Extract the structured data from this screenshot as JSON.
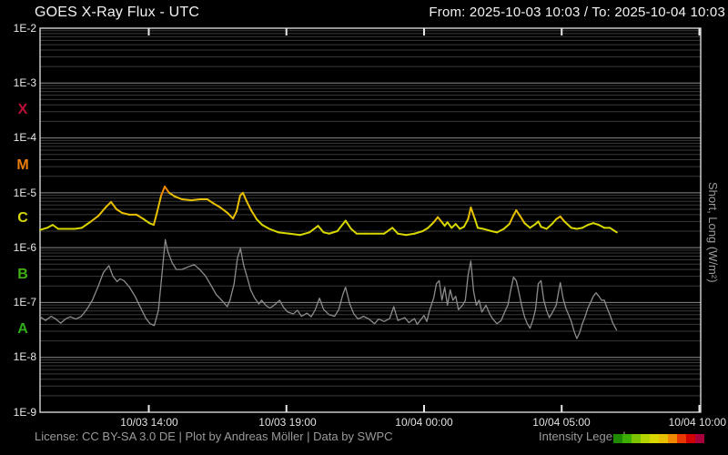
{
  "header": {
    "title": "GOES X-Ray Flux - UTC",
    "range": "From: 2025-10-03 10:03  /  To: 2025-10-04 10:03"
  },
  "footer": {
    "license": "License: CC BY-SA 3.0 DE | Plot by Andreas Möller | Data by SWPC",
    "legend_label": "Intensity Legend",
    "legend_colors": [
      "#1f8a00",
      "#3cae00",
      "#7cc400",
      "#b4d400",
      "#d8d800",
      "#e8c000",
      "#f08800",
      "#e83800",
      "#d00000",
      "#a8003c"
    ]
  },
  "chart_data": {
    "type": "line",
    "title": "GOES X-Ray Flux - UTC",
    "time_from": "2025-10-03 10:03",
    "time_to": "2025-10-04 10:03",
    "x_unit": "hours since 2025-10-03 10:03 UTC",
    "xlim": [
      0,
      24
    ],
    "ylog_lim": [
      -9,
      -2
    ],
    "grid": "log minor + major horizontal",
    "y_tick_labels": [
      "1E-2",
      "1E-3",
      "1E-4",
      "1E-5",
      "1E-6",
      "1E-7",
      "1E-8",
      "1E-9"
    ],
    "x_ticks": [
      {
        "t": 3.95,
        "label": "10/03 14:00"
      },
      {
        "t": 8.95,
        "label": "10/03 19:00"
      },
      {
        "t": 13.95,
        "label": "10/04 00:00"
      },
      {
        "t": 18.95,
        "label": "10/04 05:00"
      },
      {
        "t": 23.95,
        "label": "10/04 10:00"
      }
    ],
    "right_axis_label": "Short, Long (W/m²)",
    "class_bands": [
      {
        "label": "X",
        "color": "#bb1038",
        "log_center": -3.5
      },
      {
        "label": "M",
        "color": "#e87d0e",
        "log_center": -4.5
      },
      {
        "label": "C",
        "color": "#d6d60e",
        "log_center": -5.5
      },
      {
        "label": "B",
        "color": "#3fb113",
        "log_center": -6.5
      },
      {
        "label": "A",
        "color": "#2eae19",
        "log_center": -7.5
      }
    ],
    "palette_log_range": [
      -8,
      -3
    ],
    "series": [
      {
        "name": "Long",
        "color_mode": "intensity",
        "points": [
          [
            0,
            2.1e-06
          ],
          [
            0.26,
            2.3e-06
          ],
          [
            0.46,
            2.6e-06
          ],
          [
            0.66,
            2.2e-06
          ],
          [
            0.93,
            2.2e-06
          ],
          [
            1.26,
            2.2e-06
          ],
          [
            1.52,
            2.3e-06
          ],
          [
            1.85,
            3e-06
          ],
          [
            2.12,
            3.8e-06
          ],
          [
            2.38,
            5.4e-06
          ],
          [
            2.58,
            6.8e-06
          ],
          [
            2.78,
            5e-06
          ],
          [
            2.98,
            4.3e-06
          ],
          [
            3.24,
            4e-06
          ],
          [
            3.5,
            4e-06
          ],
          [
            3.77,
            3.3e-06
          ],
          [
            3.97,
            2.8e-06
          ],
          [
            4.13,
            2.6e-06
          ],
          [
            4.26,
            4.6e-06
          ],
          [
            4.4,
            8.9e-06
          ],
          [
            4.53,
            1.3e-05
          ],
          [
            4.69,
            1e-05
          ],
          [
            4.89,
            8.6e-06
          ],
          [
            5.16,
            7.6e-06
          ],
          [
            5.49,
            7.3e-06
          ],
          [
            5.82,
            7.6e-06
          ],
          [
            6.08,
            7.6e-06
          ],
          [
            6.28,
            6.5e-06
          ],
          [
            6.55,
            5.4e-06
          ],
          [
            6.81,
            4.3e-06
          ],
          [
            7.01,
            3.4e-06
          ],
          [
            7.14,
            4.6e-06
          ],
          [
            7.27,
            8.9e-06
          ],
          [
            7.37,
            1e-05
          ],
          [
            7.5,
            7.1e-06
          ],
          [
            7.67,
            4.8e-06
          ],
          [
            7.87,
            3.3e-06
          ],
          [
            8.07,
            2.6e-06
          ],
          [
            8.33,
            2.2e-06
          ],
          [
            8.66,
            1.9e-06
          ],
          [
            9.06,
            1.8e-06
          ],
          [
            9.45,
            1.7e-06
          ],
          [
            9.79,
            1.9e-06
          ],
          [
            10.1,
            2.5e-06
          ],
          [
            10.3,
            1.9e-06
          ],
          [
            10.5,
            1.8e-06
          ],
          [
            10.8,
            2e-06
          ],
          [
            11.1,
            3.1e-06
          ],
          [
            11.3,
            2.2e-06
          ],
          [
            11.5,
            1.8e-06
          ],
          [
            11.8,
            1.8e-06
          ],
          [
            12.2,
            1.8e-06
          ],
          [
            12.5,
            1.8e-06
          ],
          [
            12.8,
            2.3e-06
          ],
          [
            13.0,
            1.8e-06
          ],
          [
            13.3,
            1.7e-06
          ],
          [
            13.6,
            1.8e-06
          ],
          [
            13.9,
            2e-06
          ],
          [
            14.1,
            2.3e-06
          ],
          [
            14.3,
            2.9e-06
          ],
          [
            14.45,
            3.6e-06
          ],
          [
            14.6,
            2.9e-06
          ],
          [
            14.7,
            2.5e-06
          ],
          [
            14.8,
            2.9e-06
          ],
          [
            14.95,
            2.3e-06
          ],
          [
            15.1,
            2.7e-06
          ],
          [
            15.25,
            2.2e-06
          ],
          [
            15.4,
            2.4e-06
          ],
          [
            15.55,
            3.3e-06
          ],
          [
            15.65,
            5.4e-06
          ],
          [
            15.8,
            3.3e-06
          ],
          [
            15.9,
            2.3e-06
          ],
          [
            16.1,
            2.2e-06
          ],
          [
            16.4,
            2e-06
          ],
          [
            16.6,
            1.9e-06
          ],
          [
            16.85,
            2.2e-06
          ],
          [
            17.05,
            2.7e-06
          ],
          [
            17.2,
            3.9e-06
          ],
          [
            17.3,
            4.8e-06
          ],
          [
            17.42,
            3.9e-06
          ],
          [
            17.6,
            2.8e-06
          ],
          [
            17.8,
            2.3e-06
          ],
          [
            18.0,
            2.7e-06
          ],
          [
            18.1,
            3e-06
          ],
          [
            18.2,
            2.4e-06
          ],
          [
            18.4,
            2.2e-06
          ],
          [
            18.6,
            2.7e-06
          ],
          [
            18.75,
            3.3e-06
          ],
          [
            18.9,
            3.7e-06
          ],
          [
            19.05,
            3e-06
          ],
          [
            19.3,
            2.3e-06
          ],
          [
            19.5,
            2.2e-06
          ],
          [
            19.7,
            2.3e-06
          ],
          [
            19.9,
            2.6e-06
          ],
          [
            20.1,
            2.8e-06
          ],
          [
            20.3,
            2.6e-06
          ],
          [
            20.5,
            2.3e-06
          ],
          [
            20.7,
            2.3e-06
          ],
          [
            20.95,
            1.9e-06
          ]
        ]
      },
      {
        "name": "Short",
        "color": "#8c8c8c",
        "points": [
          [
            0,
            5.5e-08
          ],
          [
            0.2,
            4.7e-08
          ],
          [
            0.4,
            5.6e-08
          ],
          [
            0.55,
            5.1e-08
          ],
          [
            0.75,
            4.2e-08
          ],
          [
            0.95,
            5.1e-08
          ],
          [
            1.1,
            5.5e-08
          ],
          [
            1.3,
            5e-08
          ],
          [
            1.5,
            5.6e-08
          ],
          [
            1.7,
            7.5e-08
          ],
          [
            1.9,
            1.1e-07
          ],
          [
            2.1,
            1.9e-07
          ],
          [
            2.3,
            3.5e-07
          ],
          [
            2.5,
            4.7e-07
          ],
          [
            2.65,
            3e-07
          ],
          [
            2.8,
            2.4e-07
          ],
          [
            2.9,
            2.7e-07
          ],
          [
            3.05,
            2.5e-07
          ],
          [
            3.25,
            1.9e-07
          ],
          [
            3.45,
            1.3e-07
          ],
          [
            3.65,
            8.1e-08
          ],
          [
            3.85,
            5.1e-08
          ],
          [
            4.0,
            4.1e-08
          ],
          [
            4.15,
            3.8e-08
          ],
          [
            4.3,
            7.2e-08
          ],
          [
            4.45,
            4.2e-07
          ],
          [
            4.55,
            1.4e-06
          ],
          [
            4.65,
            8.3e-07
          ],
          [
            4.8,
            5.3e-07
          ],
          [
            4.95,
            4e-07
          ],
          [
            5.15,
            4e-07
          ],
          [
            5.4,
            4.5e-07
          ],
          [
            5.6,
            4.9e-07
          ],
          [
            5.8,
            4e-07
          ],
          [
            6.0,
            3.1e-07
          ],
          [
            6.2,
            2.1e-07
          ],
          [
            6.4,
            1.4e-07
          ],
          [
            6.6,
            1.1e-07
          ],
          [
            6.8,
            8.4e-08
          ],
          [
            6.9,
            1.1e-07
          ],
          [
            7.05,
            2.2e-07
          ],
          [
            7.17,
            6.4e-07
          ],
          [
            7.28,
            9.7e-07
          ],
          [
            7.4,
            4.7e-07
          ],
          [
            7.55,
            2.6e-07
          ],
          [
            7.65,
            1.7e-07
          ],
          [
            7.8,
            1.2e-07
          ],
          [
            7.95,
            9.4e-08
          ],
          [
            8.05,
            1.1e-07
          ],
          [
            8.2,
            8.9e-08
          ],
          [
            8.35,
            7.9e-08
          ],
          [
            8.5,
            8.9e-08
          ],
          [
            8.7,
            1.1e-07
          ],
          [
            8.85,
            8.1e-08
          ],
          [
            9.0,
            6.7e-08
          ],
          [
            9.2,
            6.2e-08
          ],
          [
            9.35,
            7.2e-08
          ],
          [
            9.5,
            5.6e-08
          ],
          [
            9.7,
            6.4e-08
          ],
          [
            9.85,
            5.5e-08
          ],
          [
            10.0,
            7.4e-08
          ],
          [
            10.15,
            1.2e-07
          ],
          [
            10.3,
            7.5e-08
          ],
          [
            10.5,
            6e-08
          ],
          [
            10.7,
            5.6e-08
          ],
          [
            10.85,
            7.4e-08
          ],
          [
            11.0,
            1.4e-07
          ],
          [
            11.1,
            1.9e-07
          ],
          [
            11.25,
            9.4e-08
          ],
          [
            11.4,
            6.2e-08
          ],
          [
            11.55,
            5e-08
          ],
          [
            11.75,
            5.6e-08
          ],
          [
            11.95,
            5e-08
          ],
          [
            12.15,
            4.1e-08
          ],
          [
            12.3,
            5e-08
          ],
          [
            12.5,
            4.5e-08
          ],
          [
            12.7,
            5.1e-08
          ],
          [
            12.85,
            8.4e-08
          ],
          [
            13.0,
            4.7e-08
          ],
          [
            13.25,
            5.3e-08
          ],
          [
            13.4,
            4.3e-08
          ],
          [
            13.6,
            5.1e-08
          ],
          [
            13.7,
            4e-08
          ],
          [
            13.85,
            5e-08
          ],
          [
            13.95,
            5.8e-08
          ],
          [
            14.05,
            4.5e-08
          ],
          [
            14.15,
            7.2e-08
          ],
          [
            14.3,
            1.2e-07
          ],
          [
            14.4,
            2.2e-07
          ],
          [
            14.5,
            2.5e-07
          ],
          [
            14.6,
            1.1e-07
          ],
          [
            14.7,
            1.9e-07
          ],
          [
            14.8,
            8.9e-08
          ],
          [
            14.9,
            1.7e-07
          ],
          [
            15.0,
            1.1e-07
          ],
          [
            15.1,
            1.3e-07
          ],
          [
            15.2,
            7.4e-08
          ],
          [
            15.35,
            8.9e-08
          ],
          [
            15.45,
            1.1e-07
          ],
          [
            15.55,
            3.2e-07
          ],
          [
            15.65,
            5.7e-07
          ],
          [
            15.75,
            1.6e-07
          ],
          [
            15.85,
            8.9e-08
          ],
          [
            15.95,
            1.1e-07
          ],
          [
            16.05,
            6.7e-08
          ],
          [
            16.2,
            8.9e-08
          ],
          [
            16.35,
            6e-08
          ],
          [
            16.45,
            5e-08
          ],
          [
            16.6,
            4.1e-08
          ],
          [
            16.75,
            4.7e-08
          ],
          [
            16.85,
            6.2e-08
          ],
          [
            17.0,
            9.1e-08
          ],
          [
            17.1,
            1.7e-07
          ],
          [
            17.2,
            2.9e-07
          ],
          [
            17.3,
            2.5e-07
          ],
          [
            17.4,
            1.5e-07
          ],
          [
            17.5,
            8.6e-08
          ],
          [
            17.6,
            5.5e-08
          ],
          [
            17.7,
            4.1e-08
          ],
          [
            17.8,
            3.4e-08
          ],
          [
            17.9,
            4.7e-08
          ],
          [
            18.0,
            7.5e-08
          ],
          [
            18.1,
            2.2e-07
          ],
          [
            18.2,
            2.5e-07
          ],
          [
            18.3,
            1.1e-07
          ],
          [
            18.4,
            7.2e-08
          ],
          [
            18.5,
            5.3e-08
          ],
          [
            18.6,
            6.4e-08
          ],
          [
            18.75,
            8.9e-08
          ],
          [
            18.85,
            1.7e-07
          ],
          [
            18.9,
            2.3e-07
          ],
          [
            19.0,
            1.2e-07
          ],
          [
            19.1,
            7.9e-08
          ],
          [
            19.2,
            6e-08
          ],
          [
            19.3,
            4.5e-08
          ],
          [
            19.4,
            3e-08
          ],
          [
            19.5,
            2.2e-08
          ],
          [
            19.6,
            2.8e-08
          ],
          [
            19.7,
            4.1e-08
          ],
          [
            19.8,
            5.5e-08
          ],
          [
            19.9,
            7.9e-08
          ],
          [
            20.0,
            1e-07
          ],
          [
            20.1,
            1.3e-07
          ],
          [
            20.2,
            1.5e-07
          ],
          [
            20.3,
            1.3e-07
          ],
          [
            20.4,
            1.1e-07
          ],
          [
            20.5,
            1.1e-07
          ],
          [
            20.6,
            7.9e-08
          ],
          [
            20.7,
            6e-08
          ],
          [
            20.8,
            4.3e-08
          ],
          [
            20.95,
            3.1e-08
          ]
        ]
      }
    ]
  }
}
